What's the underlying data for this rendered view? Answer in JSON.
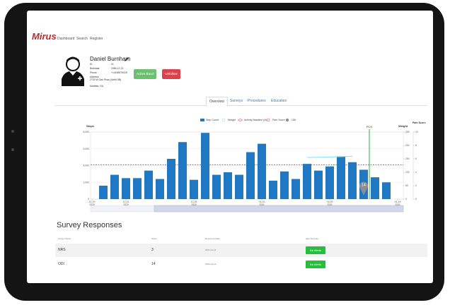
{
  "header": {
    "logo": "Mirus",
    "nav": [
      "Dashboard",
      "Search",
      "Register"
    ]
  },
  "patient": {
    "name": "Daniel Burnham",
    "fields": [
      [
        "ID",
        "21"
      ],
      [
        "Birthdate",
        "1955-12-22"
      ],
      [
        "Phone",
        "+14155575025"
      ],
      [
        "Address",
        "2733 W Oak Pkwy (Unit# 5B)"
      ]
    ],
    "address_line2": "Marietta, GA"
  },
  "buttons": [
    "Active Band",
    "Unfollow"
  ],
  "tabs": [
    "Overview",
    "Surveys",
    "Procedures",
    "Education"
  ],
  "chart_data": {
    "type": "bar",
    "categories": [
      "12-19\n2020",
      null,
      null,
      "12-22\n2020",
      null,
      null,
      null,
      null,
      null,
      "12-28\n2020",
      null,
      null,
      null,
      null,
      null,
      "01-03\n2021",
      null,
      null,
      null,
      null,
      null,
      "01-09\n2021",
      null,
      null,
      null,
      null,
      null,
      "01-15\n2021"
    ],
    "series": [
      {
        "name": "Step Count",
        "color": "#1f78c1",
        "values": [
          null,
          1600,
          2900,
          2500,
          2500,
          3400,
          2400,
          4800,
          6800,
          2300,
          7900,
          2900,
          3200,
          2900,
          5600,
          6600,
          2200,
          3300,
          2400,
          4200,
          3400,
          3900,
          5100,
          4400,
          3500,
          2600,
          2000,
          null
        ]
      },
      {
        "name": "Weight",
        "color": "#7fe3f0",
        "axis": "y2",
        "values": [
          null,
          null,
          null,
          null,
          null,
          null,
          null,
          null,
          null,
          null,
          null,
          null,
          null,
          null,
          null,
          null,
          null,
          null,
          null,
          155,
          156,
          157,
          158,
          160,
          null,
          null,
          null,
          null
        ]
      },
      {
        "name": "Pain Score",
        "color": "#e53935",
        "axis": "y3",
        "values": [
          null,
          null,
          null,
          null,
          null,
          null,
          null,
          null,
          null,
          null,
          null,
          null,
          null,
          null,
          null,
          null,
          null,
          null,
          null,
          null,
          null,
          null,
          null,
          null,
          null,
          null,
          null,
          null
        ]
      },
      {
        "name": "ODI",
        "color": "#8a8f99",
        "axis": "y2",
        "values": [
          null,
          null,
          null,
          null,
          null,
          null,
          null,
          null,
          null,
          null,
          null,
          null,
          null,
          null,
          null,
          null,
          null,
          null,
          null,
          null,
          null,
          null,
          null,
          null,
          14,
          null,
          null,
          null
        ]
      }
    ],
    "baseline": {
      "name": "Activity Baseline (Avg)",
      "value": 4100,
      "color": "#e53935"
    },
    "annotation": "PCS",
    "ylabel": "Steps",
    "y2label": "Weight",
    "y3label": "Pain Score",
    "ylim": [
      0,
      8000
    ],
    "yticks": [
      0,
      {
        "value": 2000,
        "label": "2,000"
      },
      {
        "value": 4000,
        "label": "4,000"
      },
      {
        "value": 6000,
        "label": "6,000"
      },
      {
        "value": 8000,
        "label": "8,000"
      }
    ],
    "y2lim": [
      0,
      250
    ],
    "y2ticks": [
      0,
      50,
      100,
      150,
      200,
      250
    ],
    "y3lim": [
      0,
      10
    ],
    "y3ticks": [
      0,
      2,
      4,
      6,
      8,
      10
    ],
    "grid": true
  },
  "survey": {
    "title": "Survey Responses",
    "columns": [
      "Survey Name",
      "Score",
      "Response Date",
      "Alert Severity"
    ],
    "rows": [
      [
        "NRS",
        3,
        "2021-01-12",
        "No Alerts"
      ],
      [
        "ODI",
        14,
        "2021-01-12",
        "No Alerts"
      ]
    ]
  }
}
